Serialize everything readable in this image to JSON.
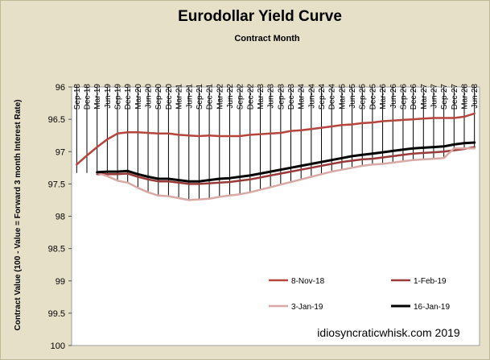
{
  "chart_data": {
    "type": "line",
    "title": "Eurodollar Yield Curve",
    "xlabel": "Contract Month",
    "ylabel": "Contract Value (100 - Value = Forward 3 month Interest Rate)",
    "annotation": "idiosyncraticwhisk.com   2019",
    "y_axis_reversed": true,
    "ylim": [
      96,
      100
    ],
    "y_ticks": [
      "96",
      "96.5",
      "97",
      "97.5",
      "98",
      "98.5",
      "99",
      "99.5",
      "100"
    ],
    "x": [
      "Sep-18",
      "Dec-18",
      "Mar-19",
      "Jun-19",
      "Sep-19",
      "Dec-19",
      "Mar-20",
      "Jun-20",
      "Sep-20",
      "Dec-20",
      "Mar-21",
      "Jun-21",
      "Sep-21",
      "Dec-21",
      "Mar-22",
      "Jun-22",
      "Sep-22",
      "Dec-22",
      "Mar-23",
      "Jun-23",
      "Sep-23",
      "Dec-23",
      "Mar-24",
      "Jun-24",
      "Sep-24",
      "Dec-24",
      "Mar-25",
      "Jun-25",
      "Sep-25",
      "Dec-25",
      "Mar-26",
      "Jun-26",
      "Sep-26",
      "Dec-26",
      "Mar-27",
      "Jun-27",
      "Sep-27",
      "Dec-27",
      "Mar-28",
      "Jun-28"
    ],
    "grid": "vertical lines at each contract month",
    "legend_position": "bottom-right",
    "series": [
      {
        "name": "8-Nov-18",
        "color": "#b5463d",
        "line_width": 2.5,
        "values": [
          97.2,
          97.06,
          96.93,
          96.81,
          96.72,
          96.7,
          96.7,
          96.71,
          96.72,
          96.72,
          96.74,
          96.75,
          96.76,
          96.75,
          96.76,
          96.76,
          96.76,
          96.74,
          96.73,
          96.72,
          96.71,
          96.68,
          96.67,
          96.65,
          96.63,
          96.61,
          96.59,
          96.58,
          96.56,
          96.55,
          96.53,
          96.52,
          96.51,
          96.5,
          96.49,
          96.48,
          96.48,
          96.48,
          96.46,
          96.41
        ]
      },
      {
        "name": "1-Feb-19",
        "color": "#9a3a38",
        "line_width": 2.5,
        "values": [
          null,
          null,
          97.35,
          97.35,
          97.35,
          97.34,
          97.39,
          97.43,
          97.46,
          97.46,
          97.48,
          97.5,
          97.5,
          97.49,
          97.48,
          97.47,
          97.45,
          97.43,
          97.4,
          97.37,
          97.34,
          97.31,
          97.28,
          97.25,
          97.22,
          97.19,
          97.16,
          97.14,
          97.12,
          97.11,
          97.09,
          97.07,
          97.05,
          97.03,
          97.02,
          97.01,
          97.0,
          96.98,
          96.96,
          96.93
        ]
      },
      {
        "name": "3-Jan-19",
        "color": "#d9aaa5",
        "line_width": 2.5,
        "values": [
          null,
          null,
          97.33,
          97.38,
          97.45,
          97.48,
          97.56,
          97.63,
          97.68,
          97.69,
          97.72,
          97.75,
          97.74,
          97.73,
          97.7,
          97.68,
          97.66,
          97.63,
          97.59,
          97.55,
          97.51,
          97.47,
          97.43,
          97.39,
          97.35,
          97.31,
          97.28,
          97.25,
          97.22,
          97.2,
          97.19,
          97.17,
          97.15,
          97.13,
          97.12,
          97.11,
          97.1,
          96.95,
          96.95,
          96.95
        ]
      },
      {
        "name": "16-Jan-19",
        "color": "#000000",
        "line_width": 3,
        "values": [
          null,
          null,
          97.32,
          97.31,
          97.31,
          97.3,
          97.35,
          97.39,
          97.42,
          97.42,
          97.44,
          97.46,
          97.46,
          97.44,
          97.42,
          97.41,
          97.39,
          97.37,
          97.34,
          97.31,
          97.28,
          97.25,
          97.22,
          97.19,
          97.16,
          97.13,
          97.1,
          97.07,
          97.05,
          97.03,
          97.01,
          96.99,
          96.97,
          96.95,
          96.94,
          96.93,
          96.92,
          96.89,
          96.87,
          96.86
        ]
      }
    ]
  }
}
